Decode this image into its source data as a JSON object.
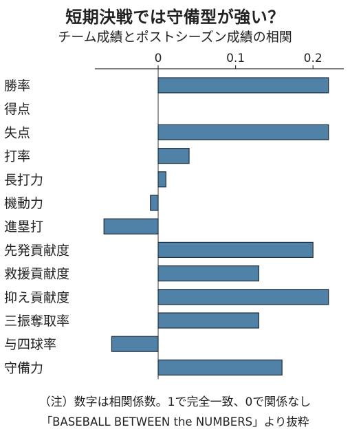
{
  "title": "短期決戦では守備型が強い？",
  "subtitle": "チーム成績とポストシーズン成績の相関",
  "chart_data": {
    "type": "bar",
    "orientation": "horizontal",
    "categories": [
      "勝率",
      "得点",
      "失点",
      "打率",
      "長打力",
      "機動力",
      "進塁打",
      "先発貢献度",
      "救援貢献度",
      "抑え貢献度",
      "三振奪取率",
      "与四球率",
      "守備力"
    ],
    "values": [
      0.22,
      0.0,
      0.22,
      0.04,
      0.01,
      -0.01,
      -0.07,
      0.2,
      0.13,
      0.22,
      0.13,
      -0.06,
      0.16
    ],
    "xlim": [
      -0.08,
      0.24
    ],
    "xticks": [
      0,
      0.1,
      0.2
    ],
    "xtick_labels": [
      "0",
      "0.1",
      "0.2"
    ],
    "bar_color": "#4f82a6",
    "grid": false
  },
  "notes": {
    "note1": "（注）数字は相関係数。1で完全一致、0で関係なし",
    "note2": "「BASEBALL BETWEEN the NUMBERS」より抜粋"
  }
}
